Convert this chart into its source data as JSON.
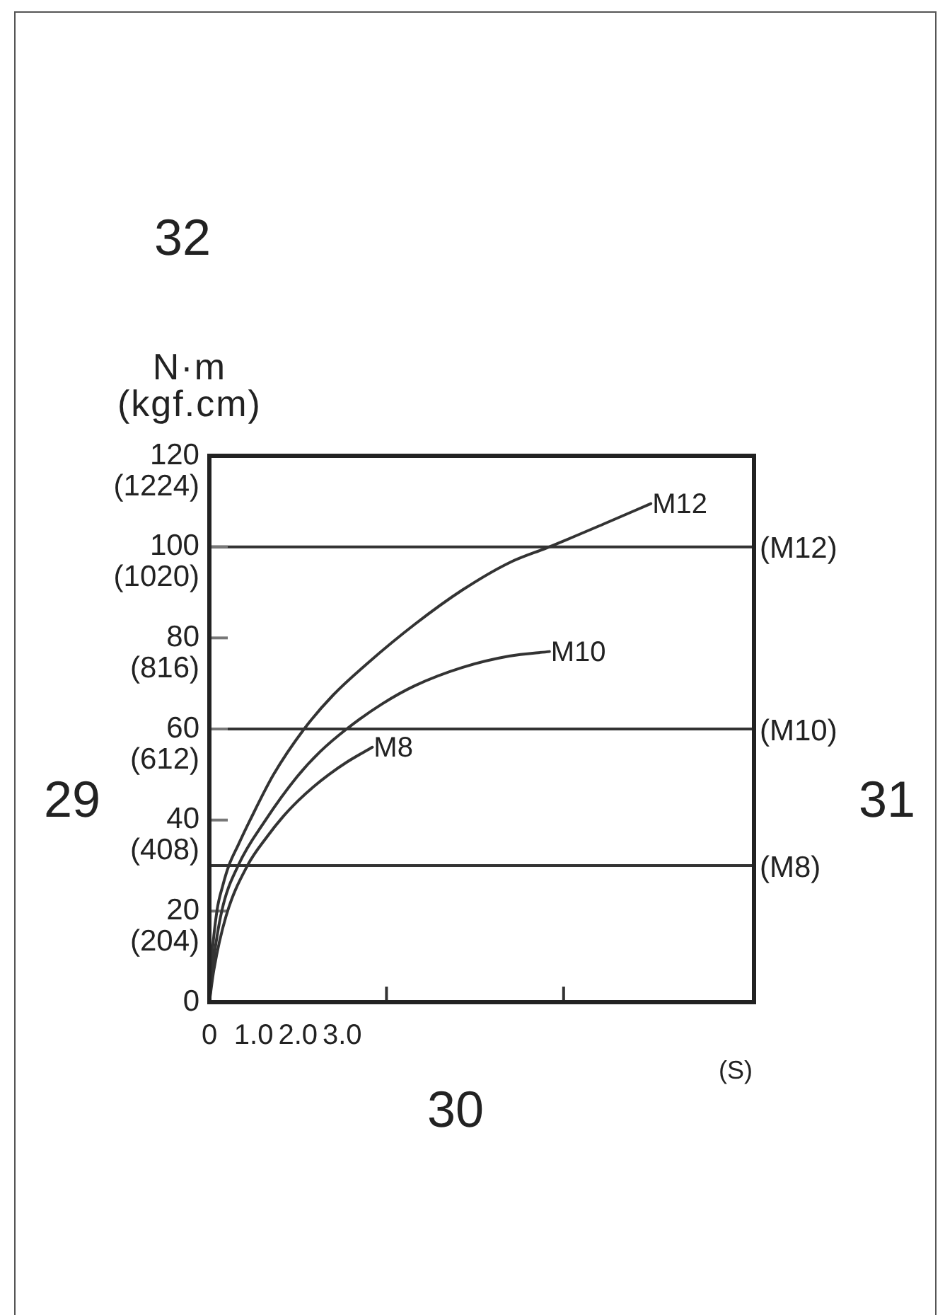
{
  "chart_data": {
    "type": "line",
    "xlabel": "(S)",
    "ylabel": "N·m\n(kgf.cm)",
    "annotations": [
      "32",
      "29",
      "31",
      "30"
    ],
    "xlim": [
      0,
      12.3
    ],
    "xticks": [
      0,
      {
        "value": 1,
        "label": "1.0"
      },
      {
        "value": 2,
        "label": "2.0"
      },
      {
        "value": 3,
        "label": "3.0"
      },
      {
        "value": 4,
        "label": null
      },
      {
        "value": 8,
        "label": null
      }
    ],
    "ylim": [
      0,
      120
    ],
    "yticks": [
      0,
      20,
      40,
      60,
      80,
      100,
      120
    ],
    "y2lim": [
      0,
      1224
    ],
    "y2ticks": [
      {
        "value": 204,
        "label": "(204)"
      },
      {
        "value": 408,
        "label": "(408)"
      },
      {
        "value": 612,
        "label": "(612)"
      },
      {
        "value": 816,
        "label": "(816)"
      },
      {
        "value": 1020,
        "label": "(1020)"
      },
      {
        "value": 1224,
        "label": "(1224)"
      }
    ],
    "series": [
      {
        "name": "M8",
        "color": "#333333",
        "x": [
          0,
          0.1,
          0.38,
          0.86,
          1.3,
          1.66,
          2.0,
          2.35,
          2.7,
          3.1,
          3.68
        ],
        "values": [
          0,
          7,
          19,
          30,
          36.3,
          40.7,
          44.2,
          47.3,
          50,
          52.7,
          56
        ]
      },
      {
        "name": "M10",
        "color": "#333333",
        "x": [
          0,
          0.08,
          0.28,
          0.65,
          1.27,
          1.98,
          2.5,
          3.1,
          3.9,
          4.64,
          5.71,
          6.77,
          7.68
        ],
        "values": [
          0,
          8,
          20,
          30,
          40,
          49.5,
          55,
          60,
          65.5,
          69.5,
          73.5,
          76,
          77
        ]
      },
      {
        "name": "M12",
        "color": "#333333",
        "x": [
          0,
          0.05,
          0.17,
          0.3,
          0.44,
          0.65,
          0.92,
          1.45,
          2.14,
          2.8,
          3.58,
          4.64,
          5.71,
          6.77,
          7.68,
          8.9,
          9.97
        ],
        "values": [
          0,
          9,
          20,
          25.5,
          30,
          34.5,
          40,
          50,
          60,
          67.5,
          74.5,
          83,
          90.5,
          96.5,
          100,
          105,
          109.5
        ]
      }
    ],
    "ref_lines": [
      {
        "axis": "y",
        "value": 100,
        "label": "(M12)",
        "color": "#333333"
      },
      {
        "axis": "y",
        "value": 60,
        "label": "(M10)",
        "color": "#333333"
      },
      {
        "axis": "y",
        "value": 30,
        "label": "(M8)",
        "color": "#333333"
      }
    ],
    "legend": false,
    "marker": "none",
    "line_style": "solid"
  }
}
